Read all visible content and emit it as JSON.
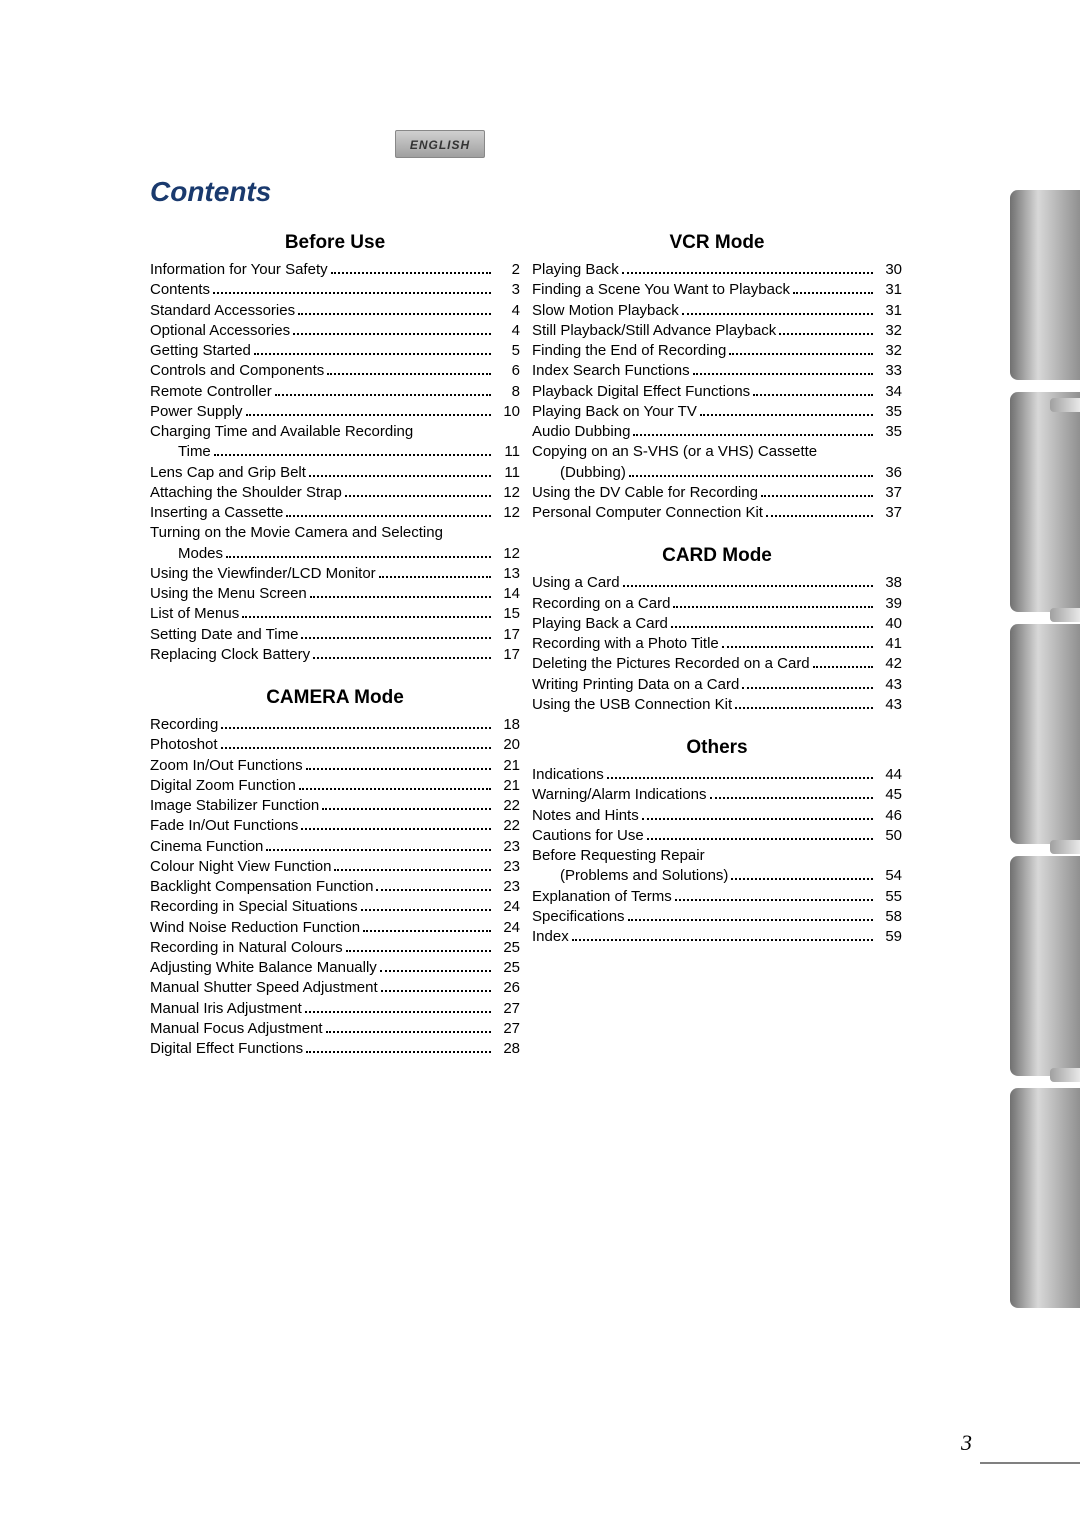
{
  "language_tab": "ENGLISH",
  "title": "Contents",
  "page_number": "3",
  "colors": {
    "title_color": "#1a3a6e",
    "text_color": "#000000",
    "background": "#ffffff",
    "tab_gradient_start": "#707070",
    "tab_gradient_mid": "#d8d8d8",
    "tab_gradient_end": "#909090"
  },
  "typography": {
    "title_fontsize": 28,
    "heading_fontsize": 19,
    "body_fontsize": 15,
    "pagenum_fontsize": 22
  },
  "sections": {
    "before_use": {
      "heading": "Before Use",
      "items": [
        {
          "label": "Information for Your Safety",
          "page": "2"
        },
        {
          "label": "Contents",
          "page": "3"
        },
        {
          "label": "Standard Accessories",
          "page": "4"
        },
        {
          "label": "Optional Accessories",
          "page": "4"
        },
        {
          "label": "Getting Started",
          "page": "5"
        },
        {
          "label": "Controls and Components",
          "page": "6"
        },
        {
          "label": "Remote Controller",
          "page": "8"
        },
        {
          "label": "Power Supply",
          "page": "10"
        },
        {
          "label": "Charging Time and Available Recording",
          "wrap": true
        },
        {
          "label": "Time",
          "page": "11",
          "cont": true
        },
        {
          "label": "Lens Cap and Grip Belt",
          "page": "11"
        },
        {
          "label": "Attaching the Shoulder Strap",
          "page": "12"
        },
        {
          "label": "Inserting a Cassette",
          "page": "12"
        },
        {
          "label": "Turning on the Movie Camera and Selecting",
          "wrap": true
        },
        {
          "label": "Modes",
          "page": "12",
          "cont": true
        },
        {
          "label": "Using the Viewfinder/LCD Monitor",
          "page": "13"
        },
        {
          "label": "Using the Menu Screen",
          "page": "14"
        },
        {
          "label": "List of Menus",
          "page": "15"
        },
        {
          "label": "Setting Date and Time",
          "page": "17"
        },
        {
          "label": "Replacing Clock Battery",
          "page": "17"
        }
      ]
    },
    "camera_mode": {
      "heading": "CAMERA Mode",
      "items": [
        {
          "label": "Recording",
          "page": "18"
        },
        {
          "label": "Photoshot",
          "page": "20"
        },
        {
          "label": "Zoom In/Out Functions",
          "page": "21"
        },
        {
          "label": "Digital Zoom Function",
          "page": "21"
        },
        {
          "label": "Image Stabilizer Function",
          "page": "22"
        },
        {
          "label": "Fade In/Out Functions",
          "page": "22"
        },
        {
          "label": "Cinema Function",
          "page": "23"
        },
        {
          "label": "Colour Night View Function",
          "page": "23"
        },
        {
          "label": "Backlight Compensation Function",
          "page": "23"
        },
        {
          "label": "Recording in Special Situations",
          "page": "24"
        },
        {
          "label": "Wind Noise Reduction Function",
          "page": "24"
        },
        {
          "label": "Recording in Natural Colours",
          "page": "25"
        },
        {
          "label": "Adjusting White Balance Manually",
          "page": "25"
        },
        {
          "label": "Manual Shutter Speed Adjustment",
          "page": "26"
        },
        {
          "label": "Manual Iris Adjustment",
          "page": "27"
        },
        {
          "label": "Manual Focus Adjustment",
          "page": "27"
        },
        {
          "label": "Digital Effect Functions",
          "page": "28"
        }
      ]
    },
    "vcr_mode": {
      "heading": "VCR Mode",
      "items": [
        {
          "label": "Playing Back",
          "page": "30"
        },
        {
          "label": "Finding a Scene You Want to Playback",
          "page": "31"
        },
        {
          "label": "Slow Motion Playback",
          "page": "31"
        },
        {
          "label": "Still Playback/Still Advance Playback",
          "page": "32"
        },
        {
          "label": "Finding the End of Recording",
          "page": "32"
        },
        {
          "label": "Index Search Functions",
          "page": "33"
        },
        {
          "label": "Playback Digital Effect Functions",
          "page": "34"
        },
        {
          "label": "Playing Back on Your TV",
          "page": "35"
        },
        {
          "label": "Audio Dubbing",
          "page": "35"
        },
        {
          "label": "Copying on an S-VHS (or a VHS) Cassette",
          "wrap": true
        },
        {
          "label": "(Dubbing)",
          "page": "36",
          "cont": true
        },
        {
          "label": "Using the DV Cable for Recording",
          "page": "37"
        },
        {
          "label": "Personal Computer Connection Kit",
          "page": "37"
        }
      ]
    },
    "card_mode": {
      "heading": "CARD Mode",
      "items": [
        {
          "label": "Using a Card",
          "page": "38"
        },
        {
          "label": "Recording on a Card",
          "page": "39"
        },
        {
          "label": "Playing Back a Card",
          "page": "40"
        },
        {
          "label": "Recording with a Photo Title",
          "page": "41"
        },
        {
          "label": "Deleting the Pictures Recorded on a Card",
          "page": "42"
        },
        {
          "label": "Writing Printing Data on a Card",
          "page": "43"
        },
        {
          "label": "Using the USB Connection Kit",
          "page": "43"
        }
      ]
    },
    "others": {
      "heading": "Others",
      "items": [
        {
          "label": "Indications",
          "page": "44"
        },
        {
          "label": "Warning/Alarm Indications",
          "page": "45"
        },
        {
          "label": "Notes and Hints",
          "page": "46"
        },
        {
          "label": "Cautions for Use",
          "page": "50"
        },
        {
          "label": "Before Requesting Repair",
          "wrap": true
        },
        {
          "label": "(Problems and Solutions)",
          "page": "54",
          "cont": true
        },
        {
          "label": "Explanation of Terms",
          "page": "55"
        },
        {
          "label": "Specifications",
          "page": "58"
        },
        {
          "label": "Index",
          "page": "59"
        }
      ]
    }
  },
  "side_notches": [
    398,
    608,
    840,
    1068
  ]
}
